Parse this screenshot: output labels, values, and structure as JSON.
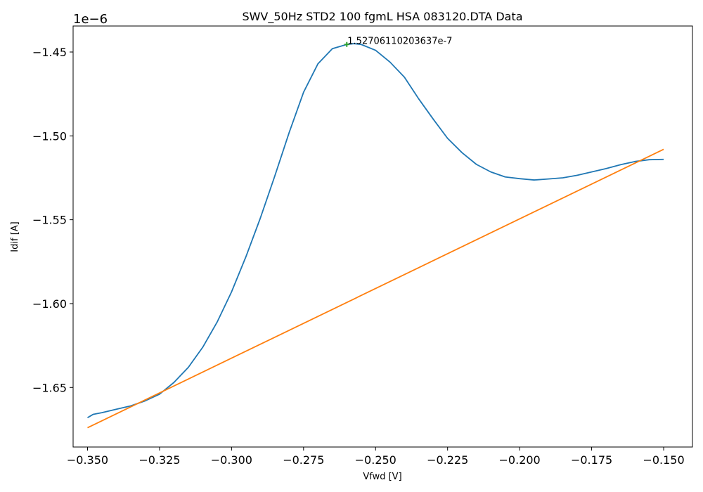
{
  "chart_data": {
    "type": "line",
    "title": "SWV_50Hz STD2 100 fgmL HSA 083120.DTA Data",
    "xlabel": "Vfwd [V]",
    "ylabel": "Idif [A]",
    "y_offset_text": "1e−6",
    "xlim": [
      -0.355,
      -0.14
    ],
    "ylim": [
      -1.6855,
      -1.4345
    ],
    "x_ticks": [
      -0.35,
      -0.325,
      -0.3,
      -0.275,
      -0.25,
      -0.225,
      -0.2,
      -0.175,
      -0.15
    ],
    "x_tick_labels": [
      "−0.350",
      "−0.325",
      "−0.300",
      "−0.275",
      "−0.250",
      "−0.225",
      "−0.200",
      "−0.175",
      "−0.150"
    ],
    "y_ticks": [
      -1.65,
      -1.6,
      -1.55,
      -1.5,
      -1.45
    ],
    "y_tick_labels": [
      "−1.65",
      "−1.60",
      "−1.55",
      "−1.50",
      "−1.45"
    ],
    "grid": false,
    "series": [
      {
        "color": "#1f77b4",
        "x": [
          -0.35,
          -0.348,
          -0.345,
          -0.34,
          -0.335,
          -0.33,
          -0.325,
          -0.32,
          -0.315,
          -0.31,
          -0.305,
          -0.3,
          -0.295,
          -0.29,
          -0.285,
          -0.28,
          -0.275,
          -0.27,
          -0.265,
          -0.26,
          -0.2575,
          -0.255,
          -0.25,
          -0.245,
          -0.24,
          -0.235,
          -0.23,
          -0.225,
          -0.22,
          -0.215,
          -0.21,
          -0.205,
          -0.2,
          -0.195,
          -0.19,
          -0.185,
          -0.18,
          -0.175,
          -0.17,
          -0.165,
          -0.16,
          -0.155,
          -0.15
        ],
        "y": [
          -1.668,
          -1.666,
          -1.665,
          -1.663,
          -1.661,
          -1.658,
          -1.654,
          -1.647,
          -1.638,
          -1.626,
          -1.611,
          -1.593,
          -1.572,
          -1.549,
          -1.524,
          -1.498,
          -1.474,
          -1.457,
          -1.448,
          -1.4455,
          -1.445,
          -1.4455,
          -1.449,
          -1.456,
          -1.465,
          -1.478,
          -1.49,
          -1.5015,
          -1.51,
          -1.517,
          -1.5215,
          -1.5245,
          -1.5255,
          -1.5263,
          -1.5257,
          -1.525,
          -1.5235,
          -1.5215,
          -1.5195,
          -1.5172,
          -1.5153,
          -1.5142,
          -1.514
        ]
      },
      {
        "color": "#ff7f0e",
        "x": [
          -0.35,
          -0.15
        ],
        "y": [
          -1.674,
          -1.508
        ]
      }
    ],
    "peak_marker": {
      "x": -0.26,
      "y": -1.4455,
      "color": "#2ca02c",
      "label": "1.52706110203637e-7"
    }
  }
}
